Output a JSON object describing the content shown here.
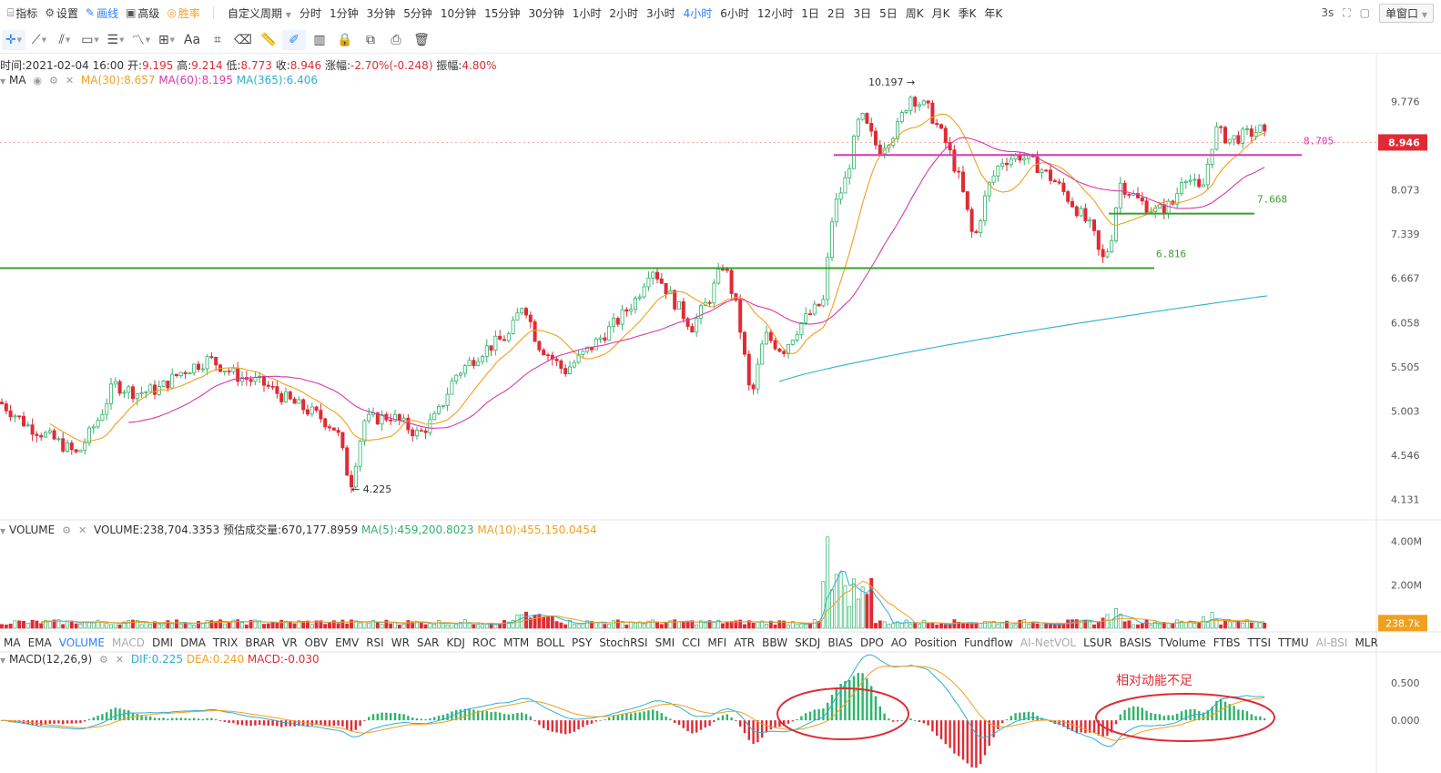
{
  "topbar": {
    "left_items": [
      {
        "label": "指标",
        "icon": "indicator-icon",
        "active": false
      },
      {
        "label": "设置",
        "icon": "gear-icon",
        "active": false
      },
      {
        "label": "画线",
        "icon": "pencil-icon",
        "active": true
      },
      {
        "label": "高级",
        "icon": "calendar-icon",
        "active": false
      },
      {
        "label": "胜率",
        "icon": "target-icon",
        "active": false,
        "gold": true
      }
    ],
    "custom_period_label": "自定义周期",
    "periods": [
      "分时",
      "1分钟",
      "3分钟",
      "5分钟",
      "10分钟",
      "15分钟",
      "30分钟",
      "1小时",
      "2小时",
      "3小时",
      "4小时",
      "6小时",
      "12小时",
      "1日",
      "2日",
      "3日",
      "5日",
      "周K",
      "月K",
      "季K",
      "年K"
    ],
    "active_period": "4小时",
    "refresh_label": "3s",
    "window_mode_label": "单窗口"
  },
  "toolbar": {
    "tools": [
      "crosshair-icon",
      "line-icon",
      "ray-icon",
      "rectangle-icon",
      "horizontal-lines-icon",
      "wave-icon",
      "measure-icon",
      "text-icon",
      "fib-icon",
      "eraser-icon",
      "ruler-icon",
      "brush-icon",
      "cell-icon",
      "lock-icon",
      "copy-icon",
      "screenshot-icon",
      "trash-icon"
    ],
    "text_tool_label": "Aa"
  },
  "ohlc": {
    "time_label": "时间:",
    "time": "2021-02-04 16:00",
    "open_label": "开:",
    "open": "9.195",
    "high_label": "高:",
    "high": "9.214",
    "low_label": "低:",
    "low": "8.773",
    "close_label": "收:",
    "close": "8.946",
    "change_label": "涨幅:",
    "change": "-2.70%(-0.248)",
    "amp_label": "振幅:",
    "amp": "4.80%"
  },
  "ma_legend": {
    "name": "MA",
    "ma30": "MA(30):8.657",
    "ma60": "MA(60):8.195",
    "ma365": "MA(365):6.406"
  },
  "volume_legend": {
    "name": "VOLUME",
    "volume": "VOLUME:238,704.3353",
    "estimated": "预估成交量:670,177.8959",
    "ma5": "MA(5):459,200.8023",
    "ma10": "MA(10):455,150.0454"
  },
  "macd_legend": {
    "name": "MACD(12,26,9)",
    "dif": "DIF:0.225",
    "dea": "DEA:0.240",
    "macd": "MACD:-0.030"
  },
  "indicator_tabs": [
    "MA",
    "EMA",
    "VOLUME",
    "MACD",
    "DMI",
    "DMA",
    "TRIX",
    "BRAR",
    "VR",
    "OBV",
    "EMV",
    "RSI",
    "WR",
    "SAR",
    "KDJ",
    "ROC",
    "MTM",
    "BOLL",
    "PSY",
    "StochRSI",
    "SMI",
    "CCI",
    "MFI",
    "ATR",
    "BBW",
    "SKDJ",
    "BIAS",
    "DPO",
    "AO",
    "Position",
    "Fundflow",
    "AI-NetVOL",
    "LSUR",
    "BASIS",
    "TVolume",
    "FTBS",
    "TTSI",
    "TTMU",
    "AI-BSI",
    "MLR"
  ],
  "indicator_tabs_active": "VOLUME",
  "indicator_tabs_dim": [
    "MACD",
    "AI-NetVOL",
    "AI-BSI"
  ],
  "price_axis": [
    "9.776",
    "8.073",
    "7.339",
    "6.667",
    "6.058",
    "5.505",
    "5.003",
    "4.546",
    "4.131"
  ],
  "current_price": "8.946",
  "volume_axis": [
    "4.00M",
    "2.00M"
  ],
  "current_volume": "238.7k",
  "macd_axis": [
    "0.500",
    "0.000"
  ],
  "annotations": {
    "high_label": "10.197",
    "low_label": "4.225",
    "level_1": "8.705",
    "level_2": "7.668",
    "level_3": "6.816",
    "macd_note": "相对动能不足"
  },
  "colors": {
    "up": "#2fb36b",
    "down": "#e02b35",
    "ma30": "#f0a020",
    "ma60": "#d63aac",
    "ma365": "#2fb0d0",
    "accent": "#2a7fff",
    "level_magenta": "#d63aac",
    "level_green": "#3aa02a"
  },
  "chart_data": {
    "type": "candlestick",
    "interval": "4小时",
    "price_key_points": [
      {
        "label": "high",
        "value": 10.197
      },
      {
        "label": "low",
        "value": 4.225
      },
      {
        "label": "last_close",
        "value": 8.946
      }
    ],
    "horizontal_levels": [
      8.705,
      7.668,
      6.816
    ],
    "price_range": [
      4.0,
      10.4
    ],
    "volume_range": [
      0,
      4400000
    ],
    "macd_range": [
      -0.7,
      0.8
    ]
  }
}
